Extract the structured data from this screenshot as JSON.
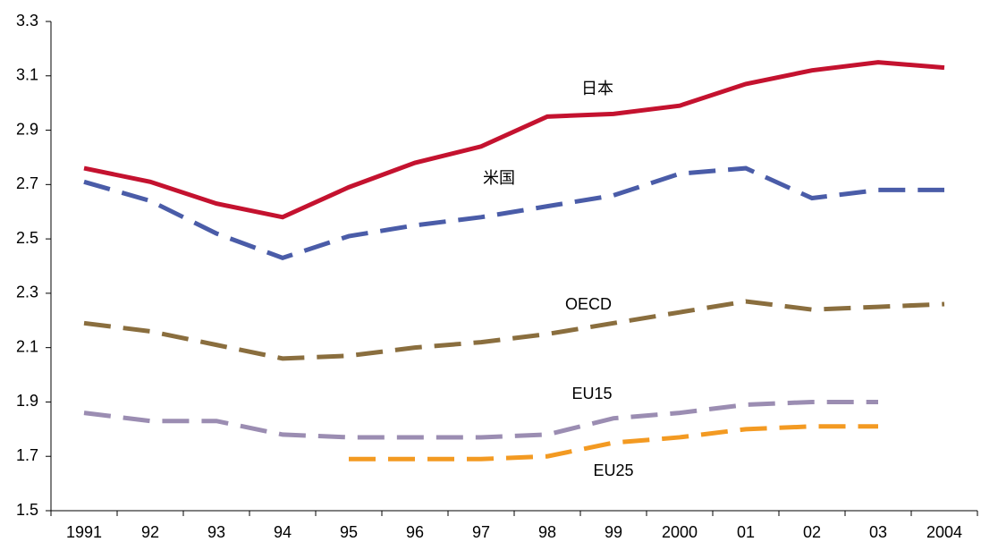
{
  "chart_data": {
    "type": "line",
    "categories": [
      "1991",
      "92",
      "93",
      "94",
      "95",
      "96",
      "97",
      "98",
      "99",
      "2000",
      "01",
      "02",
      "03",
      "2004"
    ],
    "series": [
      {
        "name": "日本",
        "color": "#c4122f",
        "dashed": false,
        "values": [
          2.76,
          2.71,
          2.63,
          2.58,
          2.69,
          2.78,
          2.84,
          2.95,
          2.96,
          2.99,
          3.07,
          3.12,
          3.15,
          3.13
        ]
      },
      {
        "name": "米国",
        "color": "#4a5ca8",
        "dashed": true,
        "values": [
          2.71,
          2.64,
          2.52,
          2.43,
          2.51,
          2.55,
          2.58,
          2.62,
          2.66,
          2.74,
          2.76,
          2.65,
          2.68,
          2.68
        ]
      },
      {
        "name": "OECD",
        "color": "#8a6e3e",
        "dashed": true,
        "values": [
          2.19,
          2.16,
          2.11,
          2.06,
          2.07,
          2.1,
          2.12,
          2.15,
          2.19,
          2.23,
          2.27,
          2.24,
          2.25,
          2.26
        ]
      },
      {
        "name": "EU15",
        "color": "#9b8db2",
        "dashed": true,
        "values": [
          1.86,
          1.83,
          1.83,
          1.78,
          1.77,
          1.77,
          1.77,
          1.78,
          1.84,
          1.86,
          1.89,
          1.9,
          1.9,
          null
        ]
      },
      {
        "name": "EU25",
        "color": "#f39a22",
        "dashed": true,
        "values": [
          null,
          null,
          null,
          null,
          1.69,
          1.69,
          1.69,
          1.7,
          1.75,
          1.77,
          1.8,
          1.81,
          1.81,
          null
        ]
      }
    ],
    "ylim": [
      1.5,
      3.3
    ],
    "yticks": [
      1.5,
      1.7,
      1.9,
      2.1,
      2.3,
      2.5,
      2.7,
      2.9,
      3.1,
      3.3
    ],
    "grid": false
  }
}
